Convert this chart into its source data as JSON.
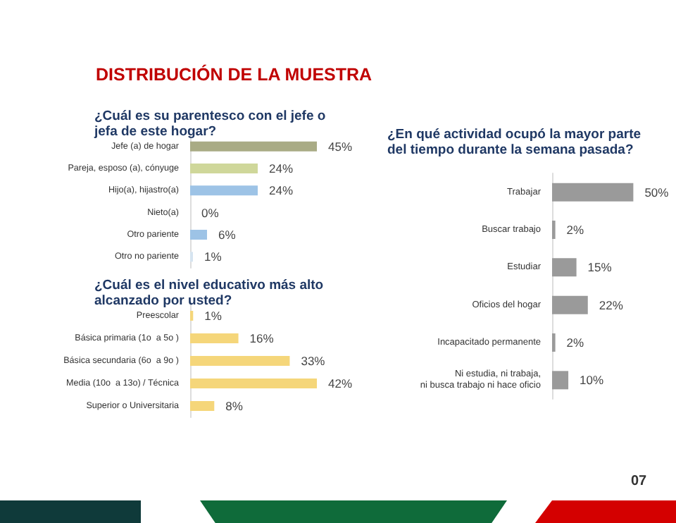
{
  "chart_data": [
    {
      "type": "bar",
      "orientation": "horizontal",
      "title": "¿Cuál es su parentesco con el jefe o\njefa de este hogar?",
      "annotations": [
        "DISTRIBUCIÓN DE LA MUESTRA"
      ],
      "categories": [
        "Jefe (a) de hogar",
        "Pareja, esposo (a), cónyuge",
        "Hijo(a), hijastro(a)",
        "Nieto(a)",
        "Otro pariente",
        "Otro no pariente"
      ],
      "values": [
        45,
        24,
        24,
        0,
        6,
        1
      ],
      "colors": [
        "#a9ab85",
        "#cfd79a",
        "#9dc3e6",
        "#9dc3e6",
        "#9dc3e6",
        "#d6e4f0"
      ],
      "value_labels": [
        "45%",
        "24%",
        "24%",
        "0%",
        "6%",
        "1%"
      ]
    },
    {
      "type": "bar",
      "orientation": "horizontal",
      "title": "¿Cuál es el nivel educativo más alto\nalcanzado por usted?",
      "categories": [
        "Preescolar",
        "Básica primaria (1o  a 5o )",
        "Básica secundaria (6o  a 9o )",
        "Media (10o  a 13o) / Técnica",
        "Superior o Universitaria"
      ],
      "values": [
        1,
        16,
        33,
        42,
        8
      ],
      "color": "#f5d67a",
      "value_labels": [
        "1%",
        "16%",
        "33%",
        "42%",
        "8%"
      ]
    },
    {
      "type": "bar",
      "orientation": "horizontal",
      "title": "¿En qué actividad ocupó la mayor parte\ndel tiempo durante la semana pasada?",
      "annotations": [
        "07"
      ],
      "categories": [
        "Trabajar",
        "Buscar trabajo",
        "Estudiar",
        "Oficios del hogar",
        "Incapacitado permanente",
        "Ni estudia, ni trabaja,\nni busca trabajo ni hace oficio"
      ],
      "values": [
        50,
        2,
        15,
        22,
        2,
        10
      ],
      "color": "#9a9a9a",
      "value_labels": [
        "50%",
        "2%",
        "15%",
        "22%",
        "2%",
        "10%"
      ]
    }
  ]
}
